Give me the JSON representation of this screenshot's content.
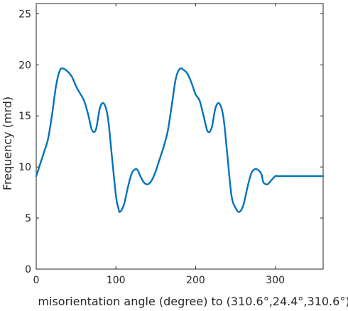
{
  "chart_data": {
    "type": "line",
    "title": "",
    "xlabel": "misorientation angle (degree) to (310.6°,24.4°,310.6°)",
    "ylabel": "Frequency (mrd)",
    "xlim": [
      0,
      360
    ],
    "ylim": [
      0,
      26
    ],
    "xticks": [
      0,
      100,
      200,
      300
    ],
    "yticks": [
      0,
      5,
      10,
      15,
      20,
      25
    ],
    "grid": false,
    "legend": "none",
    "series": [
      {
        "color": "#0072BD",
        "x": [
          0,
          5,
          10,
          15,
          20,
          25,
          30,
          35,
          40,
          45,
          50,
          55,
          60,
          65,
          70,
          75,
          80,
          85,
          90,
          95,
          100,
          103,
          105,
          110,
          115,
          120,
          125,
          128,
          130,
          135,
          140,
          145,
          150,
          155,
          160,
          165,
          170,
          175,
          180,
          185,
          190,
          195,
          200,
          205,
          210,
          215,
          220,
          225,
          230,
          235,
          240,
          245,
          250,
          255,
          260,
          265,
          270,
          275,
          280,
          283,
          285,
          290,
          295,
          300,
          305,
          308,
          310,
          315,
          320,
          325,
          330,
          335,
          340,
          345,
          350,
          355,
          360
        ],
        "y": [
          9.1,
          10.3,
          11.5,
          12.8,
          15.2,
          18.0,
          19.5,
          19.6,
          19.3,
          18.8,
          17.9,
          17.2,
          16.5,
          15.2,
          13.6,
          13.7,
          15.8,
          16.2,
          14.8,
          11.0,
          7.2,
          6.0,
          5.6,
          6.3,
          8.0,
          9.4,
          9.8,
          9.6,
          9.2,
          8.5,
          8.3,
          8.7,
          9.6,
          10.8,
          12.0,
          13.5,
          16.0,
          18.6,
          19.6,
          19.5,
          19.1,
          18.2,
          17.1,
          16.5,
          15.0,
          13.5,
          13.8,
          15.8,
          16.2,
          14.8,
          11.0,
          7.2,
          6.0,
          5.6,
          6.3,
          8.0,
          9.4,
          9.8,
          9.6,
          9.2,
          8.5,
          8.3,
          8.7,
          9.1,
          9.1,
          9.1,
          9.1,
          9.1,
          9.1,
          9.1,
          9.1,
          9.1,
          9.1,
          9.1,
          9.1,
          9.1,
          9.1
        ]
      }
    ]
  }
}
